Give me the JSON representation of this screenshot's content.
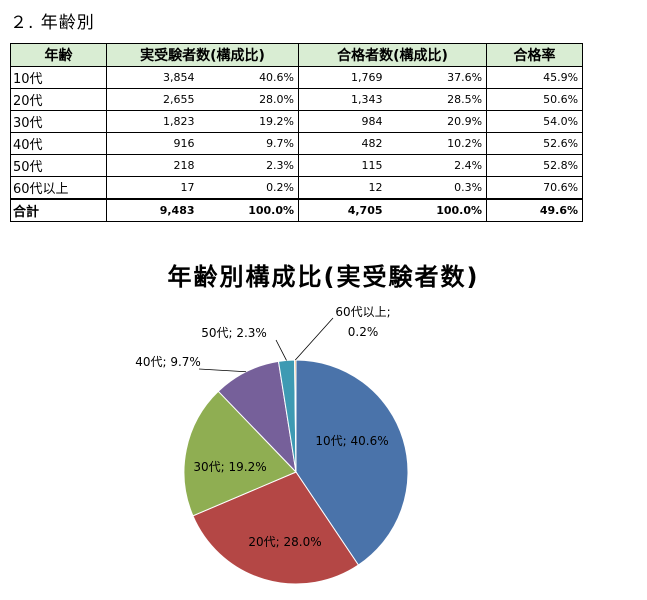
{
  "section_heading": "２. 年齢別",
  "table": {
    "headers": [
      "年齢",
      "実受験者数(構成比)",
      "合格者数(構成比)",
      "合格率"
    ],
    "rows": [
      {
        "age": "10代",
        "examinees": "3,854",
        "examinees_pct": "40.6%",
        "passers": "1,769",
        "passers_pct": "37.6%",
        "pass_rate": "45.9%"
      },
      {
        "age": "20代",
        "examinees": "2,655",
        "examinees_pct": "28.0%",
        "passers": "1,343",
        "passers_pct": "28.5%",
        "pass_rate": "50.6%"
      },
      {
        "age": "30代",
        "examinees": "1,823",
        "examinees_pct": "19.2%",
        "passers": "984",
        "passers_pct": "20.9%",
        "pass_rate": "54.0%"
      },
      {
        "age": "40代",
        "examinees": "916",
        "examinees_pct": "9.7%",
        "passers": "482",
        "passers_pct": "10.2%",
        "pass_rate": "52.6%"
      },
      {
        "age": "50代",
        "examinees": "218",
        "examinees_pct": "2.3%",
        "passers": "115",
        "passers_pct": "2.4%",
        "pass_rate": "52.8%"
      },
      {
        "age": "60代以上",
        "examinees": "17",
        "examinees_pct": "0.2%",
        "passers": "12",
        "passers_pct": "0.3%",
        "pass_rate": "70.6%"
      }
    ],
    "total": {
      "age": "合計",
      "examinees": "9,483",
      "examinees_pct": "100.0%",
      "passers": "4,705",
      "passers_pct": "100.0%",
      "pass_rate": "49.6%"
    }
  },
  "chart_data": {
    "type": "pie",
    "title": "年齢別構成比(実受験者数)",
    "slices": [
      {
        "label": "10代",
        "value": 40.6,
        "display": "10代; 40.6%",
        "color": "#4a73aa"
      },
      {
        "label": "20代",
        "value": 28.0,
        "display": "20代; 28.0%",
        "color": "#b44745"
      },
      {
        "label": "30代",
        "value": 19.2,
        "display": "30代; 19.2%",
        "color": "#8fae52"
      },
      {
        "label": "40代",
        "value": 9.7,
        "display": "40代; 9.7%",
        "color": "#76609a"
      },
      {
        "label": "50代",
        "value": 2.3,
        "display": "50代; 2.3%",
        "color": "#3e9ab3"
      },
      {
        "label": "60代以上",
        "value": 0.2,
        "display_line1": "60代以上;",
        "display_line2": "0.2%",
        "color": "#e68a2e"
      }
    ]
  }
}
